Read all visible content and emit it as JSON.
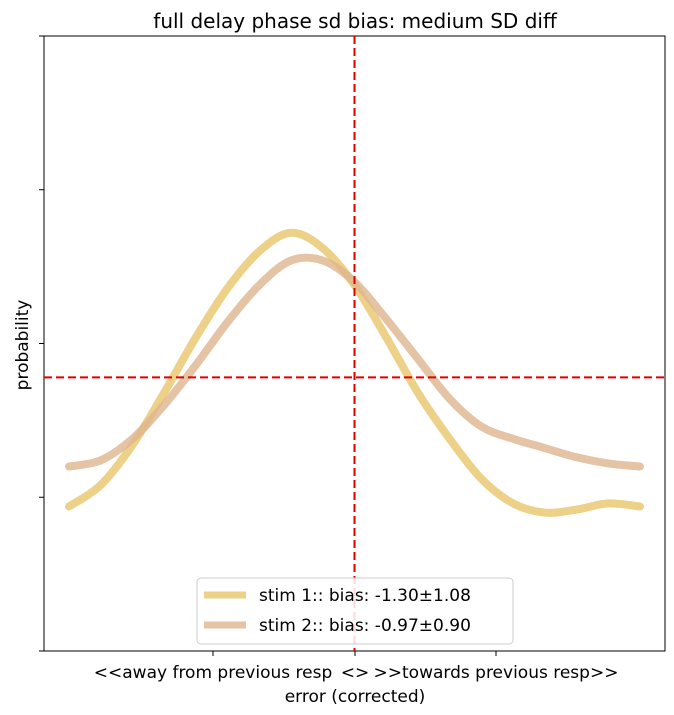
{
  "chart_data": {
    "type": "line",
    "title": "full delay phase sd bias: medium SD diff",
    "xlabel": "error (corrected)",
    "ylabel": "probability",
    "x_tick_labels": [
      "<<away from previous resp",
      "<>",
      ">>towards previous resp>>"
    ],
    "xlim": [
      -90,
      90
    ],
    "ylim": [
      0,
      1
    ],
    "reference_lines": {
      "vertical_x": 0,
      "horizontal_y": 0.445,
      "color": "#e00000",
      "style": "dashed"
    },
    "legend_position": "lower center",
    "x": [
      -90,
      -80,
      -70,
      -60,
      -50,
      -40,
      -30,
      -20,
      -10,
      0,
      10,
      20,
      30,
      40,
      50,
      60,
      70,
      80,
      90
    ],
    "series": [
      {
        "name": "stim 1:: bias: -1.30±1.08",
        "color": "#e8c56a",
        "values": [
          0.235,
          0.27,
          0.335,
          0.42,
          0.51,
          0.59,
          0.65,
          0.68,
          0.655,
          0.595,
          0.51,
          0.42,
          0.345,
          0.28,
          0.24,
          0.225,
          0.23,
          0.24,
          0.235
        ]
      },
      {
        "name": "stim 2:: bias: -0.97±0.90",
        "color": "#dfb48e",
        "values": [
          0.3,
          0.31,
          0.345,
          0.4,
          0.465,
          0.535,
          0.595,
          0.635,
          0.635,
          0.6,
          0.54,
          0.475,
          0.41,
          0.365,
          0.345,
          0.33,
          0.315,
          0.305,
          0.3
        ]
      }
    ]
  }
}
